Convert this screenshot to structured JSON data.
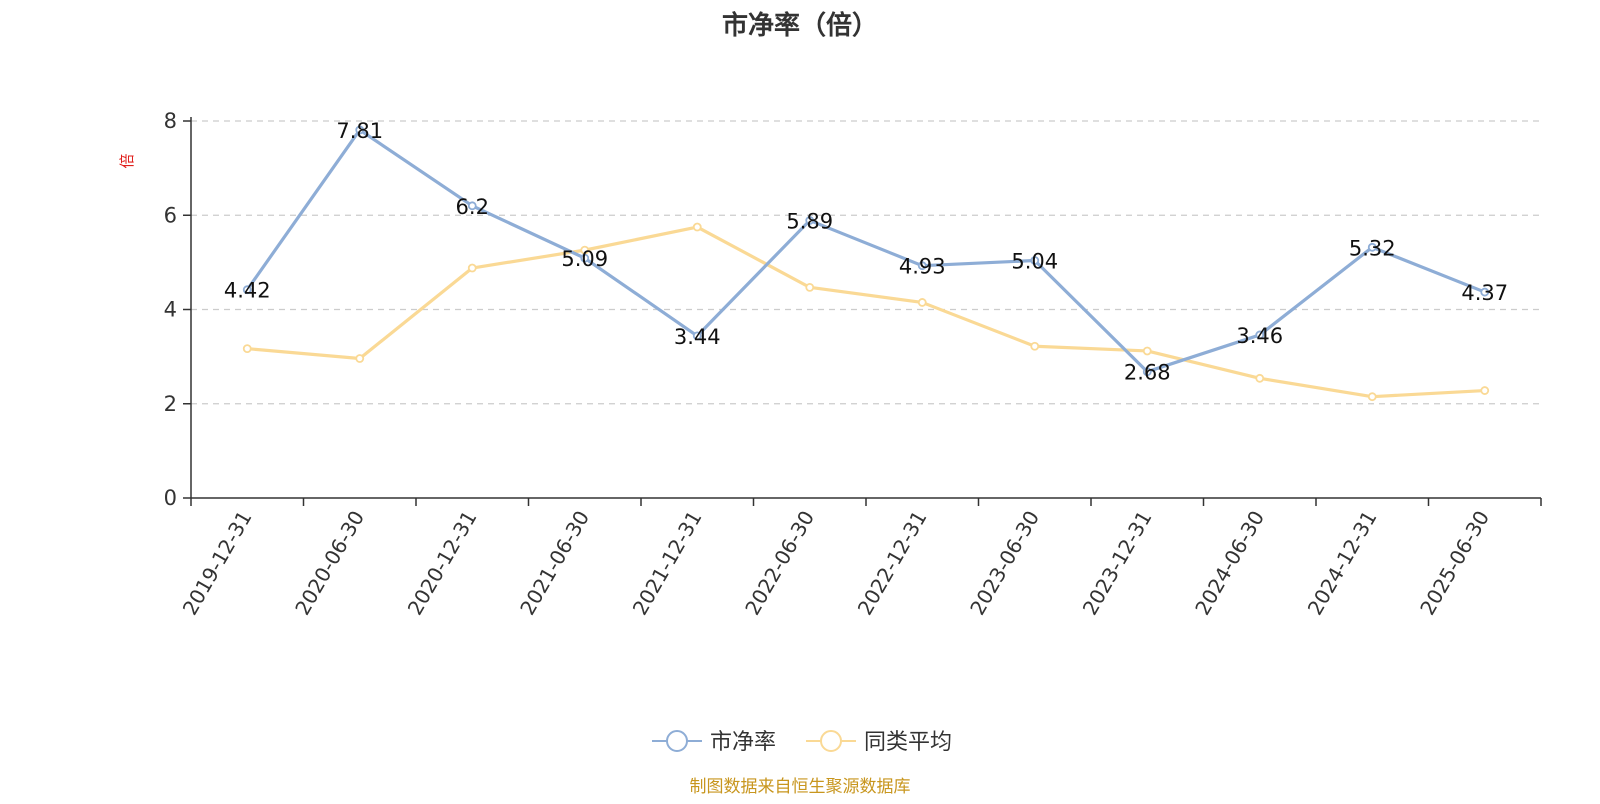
{
  "chart_data": {
    "type": "line",
    "title": "市净率（倍）",
    "ylabel": "倍",
    "xlabel": "",
    "categories": [
      "2019-12-31",
      "2020-06-30",
      "2020-12-31",
      "2021-06-30",
      "2021-12-31",
      "2022-06-30",
      "2022-12-31",
      "2023-06-30",
      "2023-12-31",
      "2024-06-30",
      "2024-12-31",
      "2025-06-30"
    ],
    "ylim": [
      0,
      8
    ],
    "yticks": [
      0,
      2,
      4,
      6,
      8
    ],
    "grid": true,
    "legend_position": "bottom-center",
    "series": [
      {
        "name": "市净率",
        "color": "#8eadd6",
        "values": [
          4.42,
          7.81,
          6.2,
          5.09,
          3.44,
          5.89,
          4.93,
          5.04,
          2.68,
          3.46,
          5.32,
          4.37
        ],
        "labels": [
          "4.42",
          "7.81",
          "6.2",
          "5.09",
          "3.44",
          "5.89",
          "4.93",
          "5.04",
          "2.68",
          "3.46",
          "5.32",
          "4.37"
        ]
      },
      {
        "name": "同类平均",
        "color": "#fad995",
        "values": [
          3.17,
          2.96,
          4.88,
          5.26,
          5.75,
          4.47,
          4.15,
          3.22,
          3.12,
          2.54,
          2.15,
          2.28
        ]
      }
    ]
  },
  "footer": {
    "source": "制图数据来自恒生聚源数据库"
  }
}
